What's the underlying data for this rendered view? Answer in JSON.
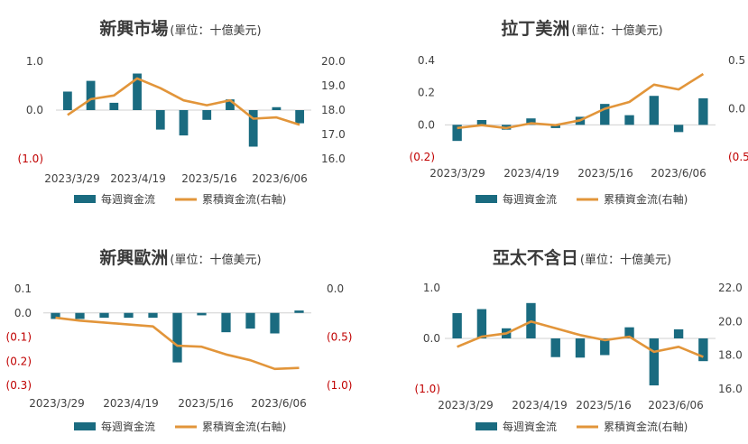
{
  "colors": {
    "bar": "#1a6b80",
    "line": "#e2953a",
    "negative_label": "#c00000"
  },
  "legend": {
    "bar_label": "每週資金流",
    "line_label": "累積資金流(右軸)"
  },
  "chart_data": [
    {
      "type": "bar",
      "title": "新興市場",
      "unit": "(單位：十億美元)",
      "x_tick_labels": [
        "2023/3/29",
        "2023/4/19",
        "2023/5/16",
        "2023/6/06"
      ],
      "left_ticks": [
        "1.0",
        "0.0",
        "(1.0)"
      ],
      "left_ylim": [
        -1.0,
        1.0
      ],
      "right_ticks": [
        "20.0",
        "19.0",
        "18.0",
        "17.0",
        "16.0"
      ],
      "right_ylim": [
        16.0,
        20.0
      ],
      "series": [
        {
          "name": "每週資金流",
          "values": [
            0.38,
            0.6,
            0.15,
            0.75,
            -0.4,
            -0.52,
            -0.2,
            0.22,
            -0.75,
            0.06,
            -0.27
          ]
        },
        {
          "name": "累積資金流(右軸)",
          "values": [
            17.8,
            18.45,
            18.6,
            19.3,
            18.9,
            18.4,
            18.2,
            18.4,
            17.65,
            17.7,
            17.4
          ]
        }
      ]
    },
    {
      "type": "bar",
      "title": "拉丁美洲",
      "unit": "(單位：十億美元)",
      "x_tick_labels": [
        "2023/3/29",
        "2023/4/19",
        "2023/5/16",
        "2023/6/06"
      ],
      "left_ticks": [
        "0.4",
        "0.2",
        "0.0",
        "(0.2)"
      ],
      "left_ylim": [
        -0.2,
        0.4
      ],
      "right_ticks": [
        "0.5",
        "0.0",
        "(0.5)"
      ],
      "right_ylim": [
        -0.5,
        0.5
      ],
      "series": [
        {
          "name": "每週資金流",
          "values": [
            -0.1,
            0.03,
            -0.03,
            0.04,
            -0.02,
            0.05,
            0.13,
            0.06,
            0.18,
            -0.045,
            0.165
          ]
        },
        {
          "name": "累積資金流(右軸)",
          "values": [
            -0.2,
            -0.17,
            -0.2,
            -0.15,
            -0.17,
            -0.12,
            0.0,
            0.07,
            0.25,
            0.2,
            0.36
          ]
        }
      ]
    },
    {
      "type": "bar",
      "title": "新興歐洲",
      "unit": "(單位：十億美元)",
      "x_tick_labels": [
        "2023/3/29",
        "2023/4/19",
        "2023/5/16",
        "2023/6/06"
      ],
      "left_ticks": [
        "0.1",
        "0.0",
        "(0.1)",
        "(0.2)",
        "(0.3)"
      ],
      "left_ylim": [
        -0.3,
        0.1
      ],
      "right_ticks": [
        "0.0",
        "(0.5)",
        "(1.0)"
      ],
      "right_ylim": [
        -1.0,
        0.0
      ],
      "series": [
        {
          "name": "每週資金流",
          "values": [
            -0.025,
            -0.025,
            -0.02,
            -0.02,
            -0.02,
            -0.205,
            -0.01,
            -0.08,
            -0.065,
            -0.085,
            0.01
          ]
        },
        {
          "name": "累積資金流(右軸)",
          "values": [
            -0.3,
            -0.33,
            -0.35,
            -0.37,
            -0.39,
            -0.59,
            -0.6,
            -0.68,
            -0.74,
            -0.83,
            -0.82
          ]
        }
      ]
    },
    {
      "type": "bar",
      "title": "亞太不含日",
      "unit": "(單位：十億美元)",
      "x_tick_labels": [
        "2023/3/29",
        "2023/4/19",
        "2023/5/16",
        "2023/6/06"
      ],
      "left_ticks": [
        "1.0",
        "0.0",
        "(1.0)"
      ],
      "left_ylim": [
        -1.0,
        1.0
      ],
      "right_ticks": [
        "22.0",
        "20.0",
        "18.0",
        "16.0"
      ],
      "right_ylim": [
        16.0,
        22.0
      ],
      "series": [
        {
          "name": "每週資金流",
          "values": [
            0.5,
            0.58,
            0.2,
            0.7,
            -0.37,
            -0.38,
            -0.33,
            0.22,
            -0.93,
            0.18,
            -0.45
          ]
        },
        {
          "name": "累積資金流(右軸)",
          "values": [
            18.5,
            19.1,
            19.3,
            20.0,
            19.6,
            19.2,
            18.9,
            19.1,
            18.2,
            18.5,
            17.9
          ]
        }
      ]
    }
  ]
}
